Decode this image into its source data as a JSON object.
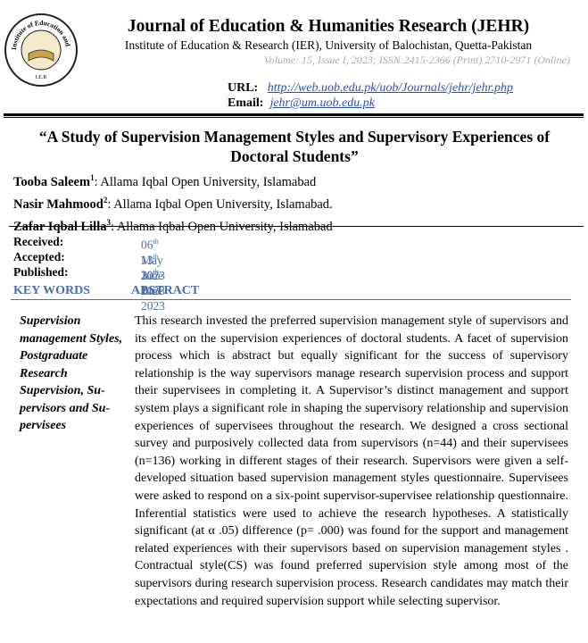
{
  "header": {
    "logo_text": "Institute of Education and Research",
    "logo_initials": "I.E.R",
    "journal": "Journal of Education & Humanities Research (JEHR)",
    "institute": "Institute of Education & Research (IER), University of Balochistan, Quetta-Pakistan",
    "volume": "Volume: 15, Issue I, 2023; ISSN:2415-2366 (Print) 2710-2971 (Online)",
    "url_label": "URL:",
    "url": "http://web.uob.edu.pk/uob/Journals/jehr/jehr.php",
    "email_label": "Email:",
    "email": "jehr@um.uob.edu.pk"
  },
  "title": "“A Study of Supervision Management Styles and Supervisory Experiences of Doctoral Students”",
  "authors": [
    {
      "name": "Tooba Saleem",
      "sup": "1",
      "affiliation": ": Allama Iqbal Open University, Islamabad"
    },
    {
      "name": "Nasir Mahmood",
      "sup": "2",
      "affiliation": ": Allama Iqbal Open University, Islamabad."
    },
    {
      "name": "Zafar Iqbal Lilla",
      "sup": "3",
      "affiliation": ": Allama Iqbal Open University, Islamabad"
    }
  ],
  "dates": [
    {
      "label": "Received:",
      "day": "06",
      "suffix": "th",
      "rest": " May 2023"
    },
    {
      "label": "Accepted:",
      "day": "13",
      "suffix": "th",
      "rest": " June 2023"
    },
    {
      "label": "Published:",
      "day": "30",
      "suffix": "th",
      "rest": " June 2023"
    }
  ],
  "keywords_heading": "KEY WORDS",
  "abstract_heading": "ABSTRACT",
  "keywords": "Supervision management Styles, Postgrad­uate Research Supervision, Su­pervisors and Su­pervisees",
  "abstract": "This research invested the preferred supervision management style of super­visors and its effect on the supervision experiences of doctoral students. A facet of supervision process which is abstract but equally significant for the success of supervisory relationship is the way supervisors manage research supervision process and support their supervisees in completing it. A Super­visor’s distinct management and support system plays a significant role in shaping the supervisory relationship and supervision experiences of supervi­sees throughout the research. We designed a cross sectional survey and pur­posively collected data from supervisors (n=44) and their supervisees (n=136) working in different stages of their research. Supervisors were given a self-developed situation based supervision management styles question­naire. Supervisees were asked to respond on a six-point supervisor-supervi­see relationship questionnaire. Inferential statistics were used to achieve the research hypotheses. A statistically significant (at α .05) difference (p= .000) was found for the support and management related experiences with their supervisors based on supervision management styles . Contractual style(CS) was found preferred supervision style among most of the supervisors during research supervision process. Research candidates may match their expecta­tions and required supervision support while selecting supervisor."
}
